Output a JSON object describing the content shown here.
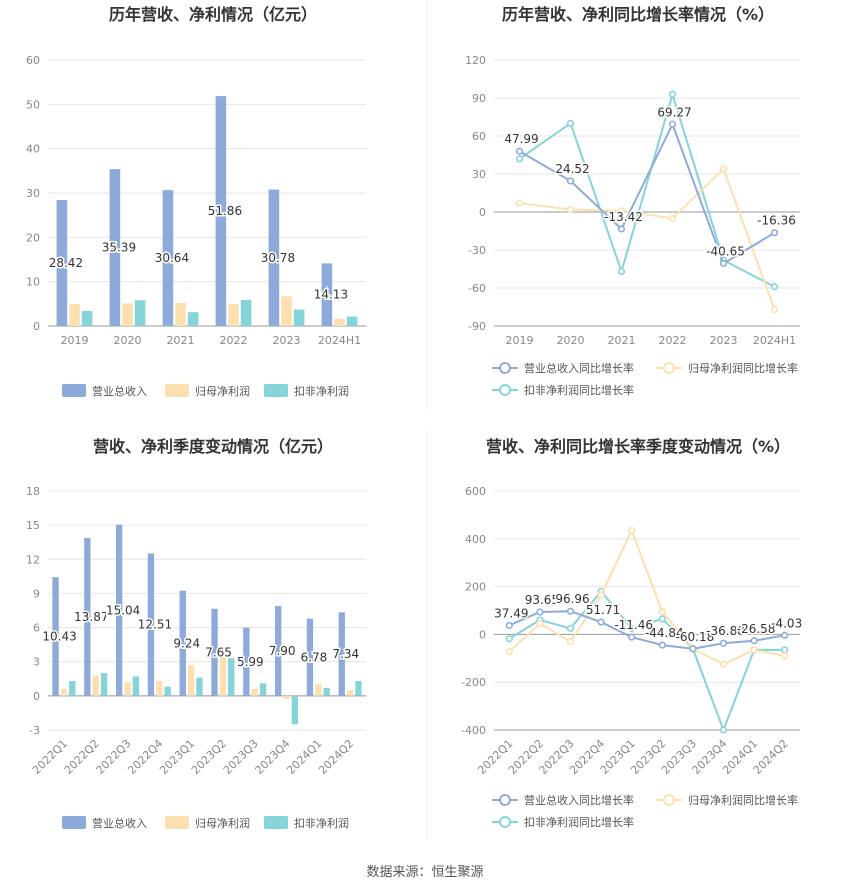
{
  "source_text": "数据来源：恒生聚源",
  "chart_data": [
    {
      "id": "c1",
      "type": "bar",
      "title": "历年营收、净利情况（亿元）",
      "categories": [
        "2019",
        "2020",
        "2021",
        "2022",
        "2023",
        "2024H1"
      ],
      "ylim": [
        0,
        60
      ],
      "yticks": [
        0,
        10,
        20,
        30,
        40,
        50,
        60
      ],
      "grid": true,
      "legend": "bottom",
      "series": [
        {
          "name": "营业总收入",
          "color": "#8eaadb",
          "values": [
            28.42,
            35.39,
            30.64,
            51.86,
            30.78,
            14.13
          ],
          "labels": [
            "28.42",
            "35.39",
            "30.64",
            "51.86",
            "30.78",
            "14.13"
          ]
        },
        {
          "name": "归母净利润",
          "color": "#fde0b0",
          "values": [
            5.0,
            5.1,
            5.2,
            5.0,
            6.7,
            1.6
          ]
        },
        {
          "name": "扣非净利润",
          "color": "#84d4d8",
          "values": [
            3.4,
            5.8,
            3.1,
            5.9,
            3.7,
            2.1
          ]
        }
      ]
    },
    {
      "id": "c2",
      "type": "line",
      "title": "历年营收、净利同比增长率情况（%）",
      "categories": [
        "2019",
        "2020",
        "2021",
        "2022",
        "2023",
        "2024H1"
      ],
      "ylim": [
        -90,
        120
      ],
      "yticks": [
        -90,
        -60,
        -30,
        0,
        30,
        60,
        90,
        120
      ],
      "grid": true,
      "legend": "bottom",
      "series": [
        {
          "name": "营业总收入同比增长率",
          "color": "#8eaadb",
          "values": [
            47.99,
            24.52,
            -13.42,
            69.27,
            -40.65,
            -16.36
          ],
          "labels": [
            "47.99",
            "24.52",
            "-13.42",
            "69.27",
            "-40.65",
            "-16.36"
          ]
        },
        {
          "name": "归母净利润同比增长率",
          "color": "#fde0b0",
          "values": [
            7,
            2,
            1,
            -5,
            34,
            -77
          ]
        },
        {
          "name": "扣非净利润同比增长率",
          "color": "#84d4d8",
          "values": [
            42,
            70,
            -47,
            93,
            -38,
            -59
          ]
        }
      ]
    },
    {
      "id": "c3",
      "type": "bar",
      "title": "营收、净利季度变动情况（亿元）",
      "categories": [
        "2022Q1",
        "2022Q2",
        "2022Q3",
        "2022Q4",
        "2023Q1",
        "2023Q2",
        "2023Q3",
        "2023Q4",
        "2024Q1",
        "2024Q2"
      ],
      "ylim": [
        -3,
        18
      ],
      "yticks": [
        -3,
        0,
        3,
        6,
        9,
        12,
        15,
        18
      ],
      "grid": true,
      "legend": "bottom",
      "series": [
        {
          "name": "营业总收入",
          "color": "#8eaadb",
          "values": [
            10.43,
            13.87,
            15.04,
            12.51,
            9.24,
            7.65,
            5.99,
            7.9,
            6.78,
            7.34
          ],
          "labels": [
            "10.43",
            "13.87",
            "15.04",
            "12.51",
            "9.24",
            "7.65",
            "5.99",
            "7.90",
            "6.78",
            "7.34"
          ]
        },
        {
          "name": "归母净利润",
          "color": "#fde0b0",
          "values": [
            0.6,
            1.8,
            1.2,
            1.3,
            2.7,
            3.5,
            0.6,
            -0.3,
            1.0,
            0.5
          ]
        },
        {
          "name": "扣非净利润",
          "color": "#84d4d8",
          "values": [
            1.3,
            2.0,
            1.7,
            0.8,
            1.6,
            3.3,
            1.1,
            -2.5,
            0.7,
            1.3
          ]
        }
      ]
    },
    {
      "id": "c4",
      "type": "line",
      "title": "营收、净利同比增长率季度变动情况（%）",
      "categories": [
        "2022Q1",
        "2022Q2",
        "2022Q3",
        "2022Q4",
        "2023Q1",
        "2023Q2",
        "2023Q3",
        "2023Q4",
        "2024Q1",
        "2024Q2"
      ],
      "ylim": [
        -400,
        600
      ],
      "yticks": [
        -400,
        -200,
        0,
        200,
        400,
        600
      ],
      "grid": true,
      "legend": "bottom",
      "series": [
        {
          "name": "营业总收入同比增长率",
          "color": "#8eaadb",
          "values": [
            37.49,
            93.65,
            96.96,
            51.71,
            -11.46,
            -44.84,
            -60.18,
            -36.88,
            -26.58,
            -4.03
          ],
          "labels": [
            "37.49",
            "93.65",
            "96.96",
            "51.71",
            "-11.46",
            "-44.84",
            "-60.18",
            "-36.88",
            "-26.58",
            "-4.03"
          ]
        },
        {
          "name": "归母净利润同比增长率",
          "color": "#fde0b0",
          "values": [
            -72,
            45,
            -30,
            165,
            435,
            95,
            -60,
            -125,
            -65,
            -90
          ]
        },
        {
          "name": "扣非净利润同比增长率",
          "color": "#84d4d8",
          "values": [
            -18,
            60,
            25,
            180,
            25,
            65,
            -60,
            -400,
            -65,
            -65
          ]
        }
      ]
    }
  ]
}
